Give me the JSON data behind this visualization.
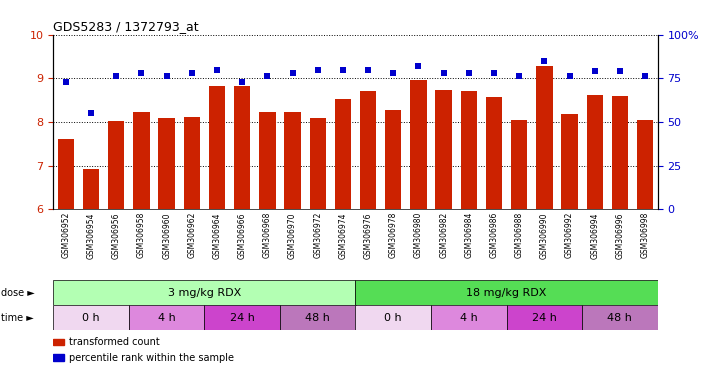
{
  "title": "GDS5283 / 1372793_at",
  "samples": [
    "GSM306952",
    "GSM306954",
    "GSM306956",
    "GSM306958",
    "GSM306960",
    "GSM306962",
    "GSM306964",
    "GSM306966",
    "GSM306968",
    "GSM306970",
    "GSM306972",
    "GSM306974",
    "GSM306976",
    "GSM306978",
    "GSM306980",
    "GSM306982",
    "GSM306984",
    "GSM306986",
    "GSM306988",
    "GSM306990",
    "GSM306992",
    "GSM306994",
    "GSM306996",
    "GSM306998"
  ],
  "bar_values": [
    7.62,
    6.92,
    8.02,
    8.22,
    8.08,
    8.12,
    8.82,
    8.82,
    8.22,
    8.22,
    8.08,
    8.52,
    8.7,
    8.28,
    8.97,
    8.72,
    8.7,
    8.58,
    8.05,
    9.28,
    8.18,
    8.62,
    8.6,
    8.05
  ],
  "dot_values": [
    73,
    55,
    76,
    78,
    76,
    78,
    80,
    73,
    76,
    78,
    80,
    80,
    80,
    78,
    82,
    78,
    78,
    78,
    76,
    85,
    76,
    79,
    79,
    76
  ],
  "bar_color": "#cc2200",
  "dot_color": "#0000cc",
  "ylim_left": [
    6,
    10
  ],
  "ylim_right": [
    0,
    100
  ],
  "yticks_left": [
    6,
    7,
    8,
    9,
    10
  ],
  "yticks_right": [
    0,
    25,
    50,
    75,
    100
  ],
  "ytick_labels_right": [
    "0",
    "25",
    "50",
    "75",
    "100%"
  ],
  "dose_groups": [
    {
      "label": "3 mg/kg RDX",
      "start": 0,
      "end": 12,
      "color": "#b3ffb3"
    },
    {
      "label": "18 mg/kg RDX",
      "start": 12,
      "end": 24,
      "color": "#55dd55"
    }
  ],
  "time_groups": [
    {
      "label": "0 h",
      "start": 0,
      "end": 3,
      "color": "#f0d0f0"
    },
    {
      "label": "4 h",
      "start": 3,
      "end": 6,
      "color": "#dd88dd"
    },
    {
      "label": "24 h",
      "start": 6,
      "end": 9,
      "color": "#cc55cc"
    },
    {
      "label": "48 h",
      "start": 9,
      "end": 12,
      "color": "#bb88bb"
    },
    {
      "label": "0 h",
      "start": 12,
      "end": 15,
      "color": "#f0d0f0"
    },
    {
      "label": "4 h",
      "start": 15,
      "end": 18,
      "color": "#dd88dd"
    },
    {
      "label": "24 h",
      "start": 18,
      "end": 21,
      "color": "#cc55cc"
    },
    {
      "label": "48 h",
      "start": 21,
      "end": 24,
      "color": "#bb88bb"
    }
  ],
  "legend_items": [
    {
      "label": "transformed count",
      "color": "#cc2200"
    },
    {
      "label": "percentile rank within the sample",
      "color": "#0000cc"
    }
  ],
  "xlabel_area_color": "#cccccc"
}
